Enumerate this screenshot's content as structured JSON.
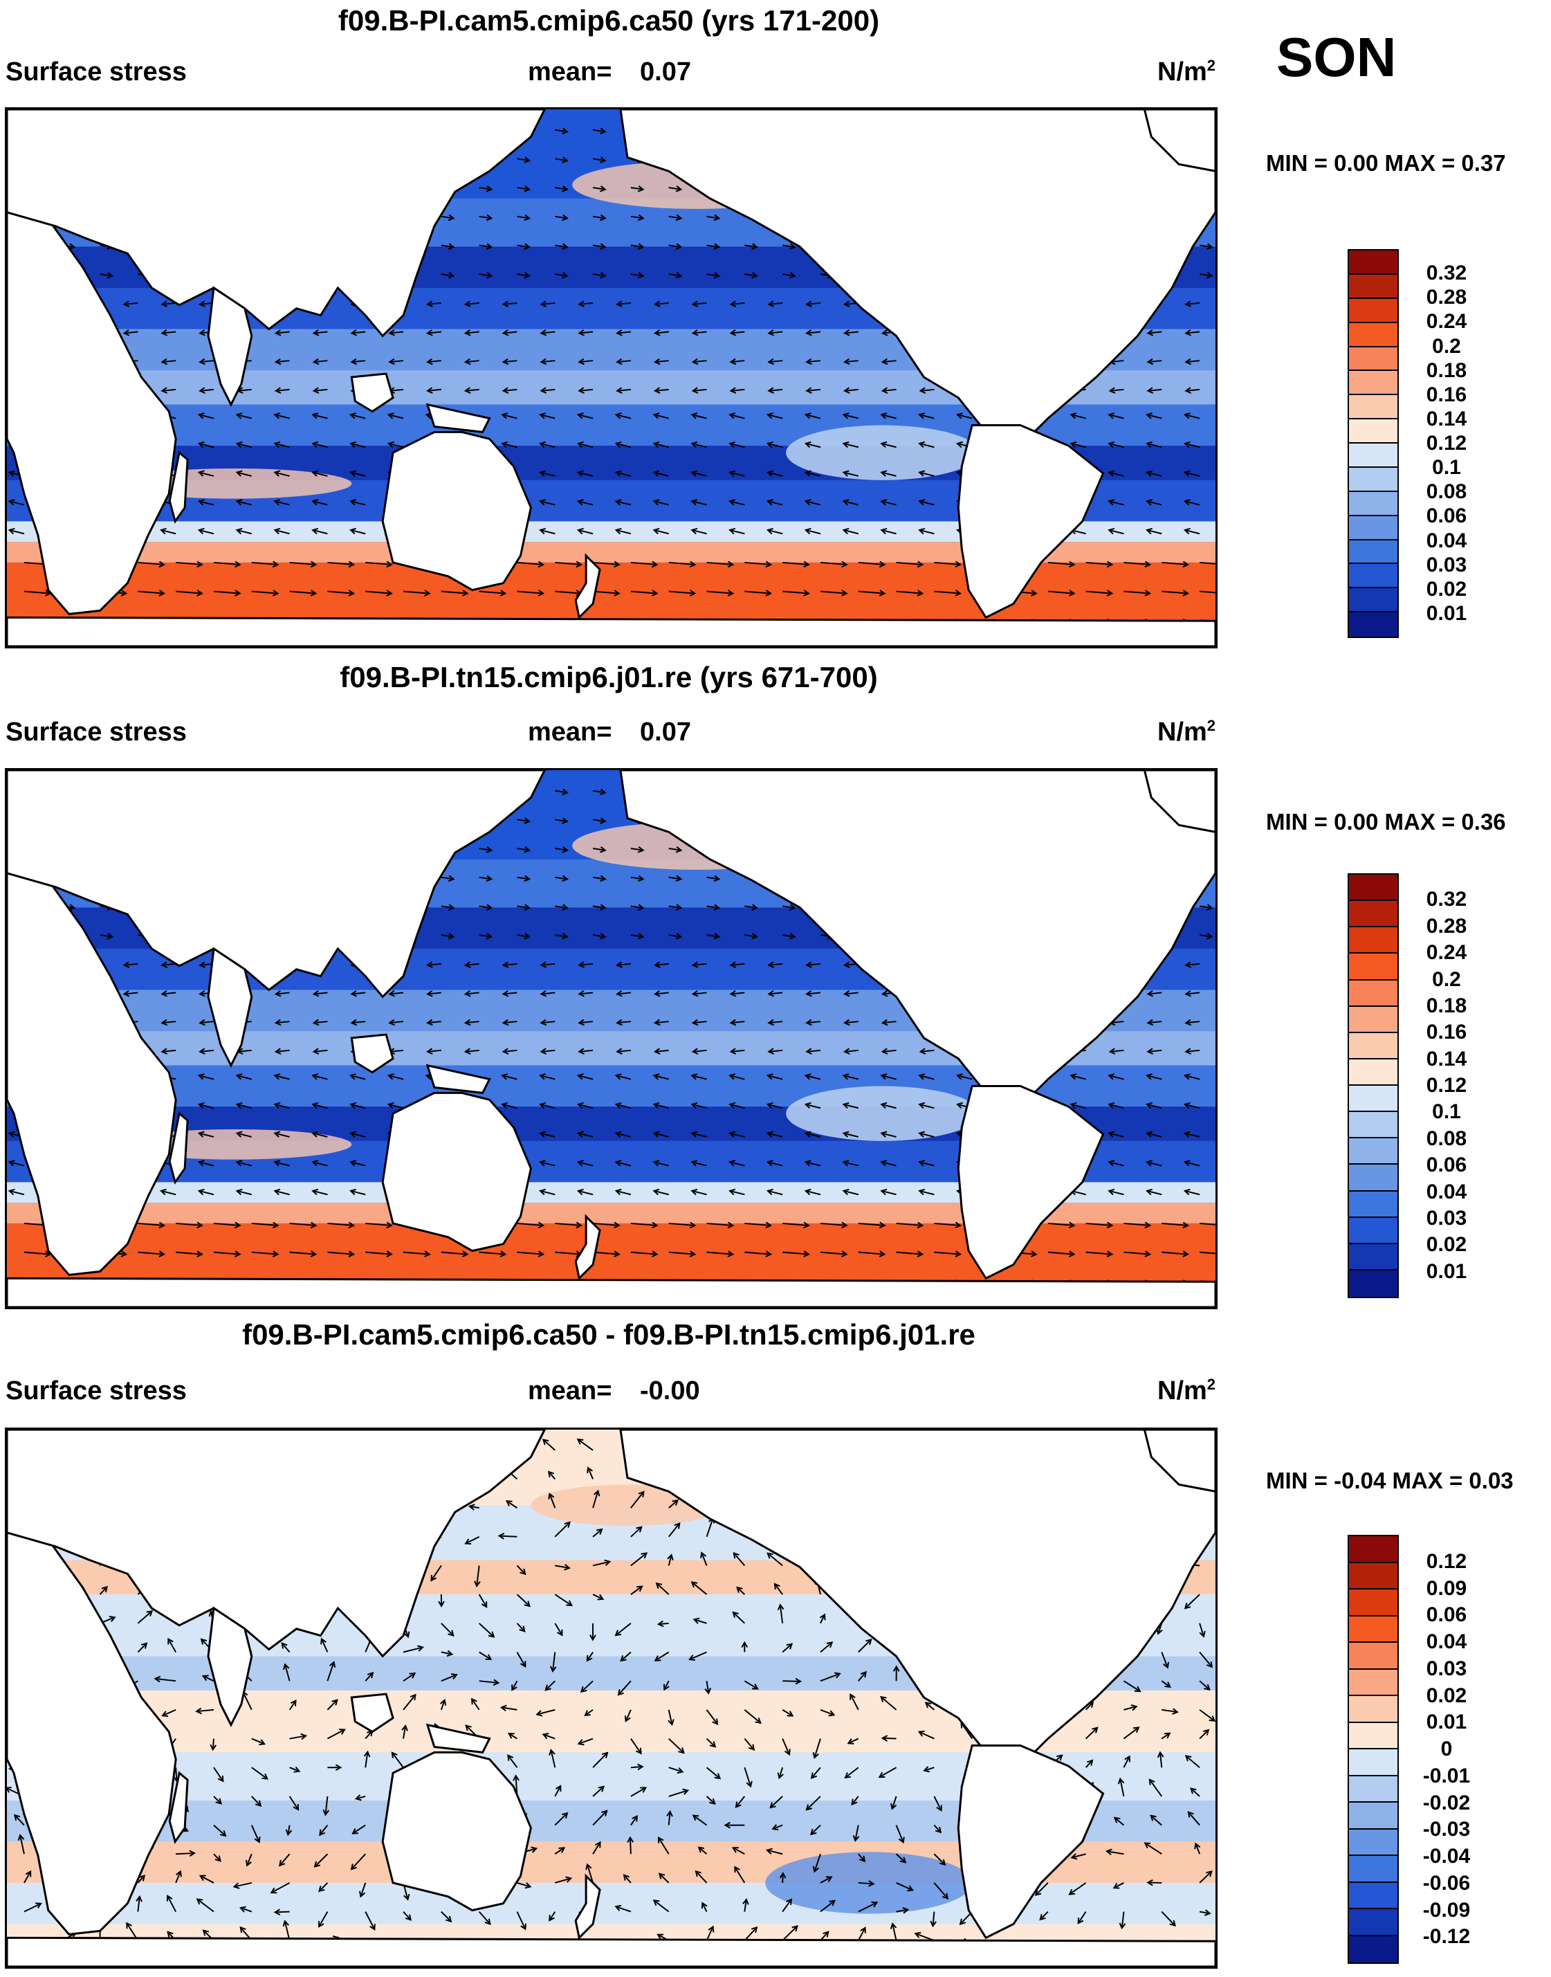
{
  "season": "SON",
  "panels": [
    {
      "title": "f09.B-PI.cam5.cmip6.ca50 (yrs 171-200)",
      "variable": "Surface stress",
      "mean_label": "mean=",
      "mean_value": "0.07",
      "units_base": "N/m",
      "units_exp": "2",
      "minmax": "MIN =   0.00 MAX =   0.37",
      "map_kind": "abs",
      "colorbar": {
        "labels": [
          "0.32",
          "0.28",
          "0.24",
          "0.2",
          "0.18",
          "0.16",
          "0.14",
          "0.12",
          "0.1",
          "0.08",
          "0.06",
          "0.04",
          "0.03",
          "0.02",
          "0.01"
        ],
        "colors": [
          "#8c0a0a",
          "#b5220c",
          "#dc3a10",
          "#f55a22",
          "#f8825a",
          "#f9a886",
          "#fbcbb0",
          "#fde8d8",
          "#d6e6f6",
          "#b3cdf0",
          "#8fb2ea",
          "#6896e5",
          "#3f75df",
          "#2556d4",
          "#1437b4",
          "#0a1a8a"
        ]
      }
    },
    {
      "title": "f09.B-PI.tn15.cmip6.j01.re (yrs 671-700)",
      "variable": "Surface stress",
      "mean_label": "mean=",
      "mean_value": "0.07",
      "units_base": "N/m",
      "units_exp": "2",
      "minmax": "MIN =   0.00 MAX =   0.36",
      "map_kind": "abs",
      "colorbar": {
        "labels": [
          "0.32",
          "0.28",
          "0.24",
          "0.2",
          "0.18",
          "0.16",
          "0.14",
          "0.12",
          "0.1",
          "0.08",
          "0.06",
          "0.04",
          "0.03",
          "0.02",
          "0.01"
        ],
        "colors": [
          "#8c0a0a",
          "#b5220c",
          "#dc3a10",
          "#f55a22",
          "#f8825a",
          "#f9a886",
          "#fbcbb0",
          "#fde8d8",
          "#d6e6f6",
          "#b3cdf0",
          "#8fb2ea",
          "#6896e5",
          "#3f75df",
          "#2556d4",
          "#1437b4",
          "#0a1a8a"
        ]
      }
    },
    {
      "title": "f09.B-PI.cam5.cmip6.ca50 - f09.B-PI.tn15.cmip6.j01.re",
      "variable": "Surface stress",
      "mean_label": "mean=",
      "mean_value": "-0.00",
      "units_base": "N/m",
      "units_exp": "2",
      "minmax": "MIN =  -0.04 MAX =   0.03",
      "map_kind": "diff",
      "colorbar": {
        "labels": [
          "0.12",
          "0.09",
          "0.06",
          "0.04",
          "0.03",
          "0.02",
          "0.01",
          "0",
          "-0.01",
          "-0.02",
          "-0.03",
          "-0.04",
          "-0.06",
          "-0.09",
          "-0.12"
        ],
        "colors": [
          "#8c0a0a",
          "#b5220c",
          "#dc3a10",
          "#f55a22",
          "#f8825a",
          "#f9a886",
          "#fbcbb0",
          "#fde8d8",
          "#d6e6f6",
          "#b3cdf0",
          "#8fb2ea",
          "#6896e5",
          "#3f75df",
          "#2556d4",
          "#1437b4",
          "#0a1a8a"
        ]
      }
    }
  ]
}
